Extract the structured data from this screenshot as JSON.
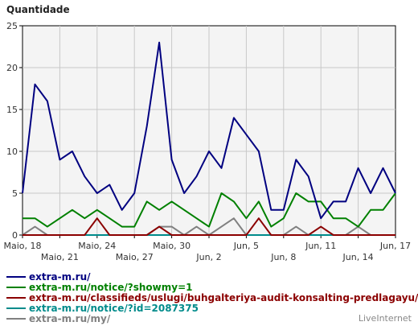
{
  "chart_data": {
    "type": "line",
    "title": "Quantidade",
    "ylim": [
      0,
      25
    ],
    "yticks": [
      0,
      5,
      10,
      15,
      20,
      25
    ],
    "grid": true,
    "legend_placement": "bottom-left",
    "x_tick_labels": [
      {
        "index": 0,
        "label": "Maio, 18",
        "row": 1
      },
      {
        "index": 3,
        "label": "Maio, 21",
        "row": 2
      },
      {
        "index": 6,
        "label": "Maio, 24",
        "row": 1
      },
      {
        "index": 9,
        "label": "Maio, 27",
        "row": 2
      },
      {
        "index": 12,
        "label": "Maio, 30",
        "row": 1
      },
      {
        "index": 15,
        "label": "Jun, 2",
        "row": 2
      },
      {
        "index": 18,
        "label": "Jun, 5",
        "row": 1
      },
      {
        "index": 21,
        "label": "Jun, 8",
        "row": 2
      },
      {
        "index": 24,
        "label": "Jun, 11",
        "row": 1
      },
      {
        "index": 27,
        "label": "Jun, 14",
        "row": 2
      },
      {
        "index": 30,
        "label": "Jun, 17",
        "row": 1
      }
    ],
    "series": [
      {
        "name": "extra-m.ru/",
        "color": "#000080",
        "values": [
          5,
          18,
          16,
          9,
          10,
          7,
          5,
          6,
          3,
          5,
          13,
          23,
          9,
          5,
          7,
          10,
          8,
          14,
          12,
          10,
          3,
          3,
          9,
          7,
          2,
          4,
          4,
          8,
          5,
          8,
          5
        ]
      },
      {
        "name": "extra-m.ru/notice/?showmy=1",
        "color": "#008000",
        "values": [
          2,
          2,
          1,
          2,
          3,
          2,
          3,
          2,
          1,
          1,
          4,
          3,
          4,
          3,
          2,
          1,
          5,
          4,
          2,
          4,
          1,
          2,
          5,
          4,
          4,
          2,
          2,
          1,
          3,
          3,
          5
        ]
      },
      {
        "name": "extra-m.ru/classifieds/uslugi/buhgalteriya-audit-konsalting-predlagayu/all/",
        "color": "#8b0000",
        "values": [
          0,
          0,
          0,
          0,
          0,
          0,
          2,
          0,
          0,
          0,
          0,
          1,
          0,
          0,
          0,
          0,
          0,
          0,
          0,
          2,
          0,
          0,
          0,
          0,
          1,
          0,
          0,
          0,
          0,
          0,
          0
        ]
      },
      {
        "name": "extra-m.ru/notice/?id=2087375",
        "color": "#008b8b",
        "values": [
          0,
          0,
          0,
          0,
          0,
          0,
          0,
          0,
          0,
          0,
          0,
          0,
          0,
          0,
          0,
          0,
          0,
          0,
          0,
          0,
          0,
          0,
          0,
          0,
          0,
          0,
          0,
          0,
          0,
          0,
          0
        ]
      },
      {
        "name": "extra-m.ru/my/",
        "color": "#808080",
        "values": [
          0,
          1,
          0,
          0,
          0,
          0,
          0,
          0,
          0,
          0,
          0,
          1,
          1,
          0,
          1,
          0,
          1,
          2,
          0,
          0,
          0,
          0,
          1,
          0,
          0,
          0,
          0,
          1,
          0,
          0,
          0
        ]
      }
    ]
  },
  "branding": {
    "text": "LiveInternet"
  }
}
